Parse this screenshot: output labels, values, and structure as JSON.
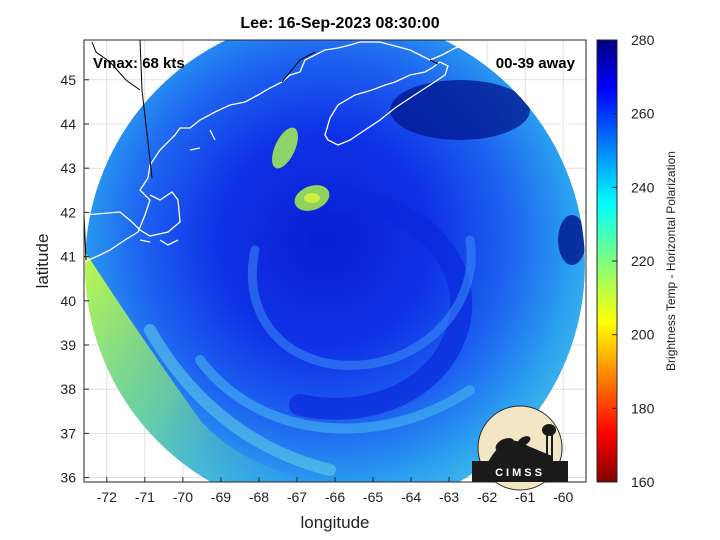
{
  "chart_data": {
    "type": "heatmap",
    "title": "Lee: 16-Sep-2023 08:30:00",
    "xlabel": "longitude",
    "ylabel": "latitude",
    "xlim": [
      -72.6,
      -59.4
    ],
    "ylim": [
      35.9,
      45.9
    ],
    "xticks": [
      -72,
      -71,
      -70,
      -69,
      -68,
      -67,
      -66,
      -65,
      -64,
      -63,
      -62,
      -61,
      -60
    ],
    "yticks": [
      36,
      37,
      38,
      39,
      40,
      41,
      42,
      43,
      44,
      45
    ],
    "grid": true,
    "annotations": {
      "vmax": "Vmax: 68 kts",
      "distance": "00-39 away"
    },
    "colorbar": {
      "label": "Brightness Temp - Horizontal Polarization",
      "range": [
        160,
        280
      ],
      "ticks": [
        280,
        260,
        240,
        220,
        200,
        180,
        160
      ],
      "colormap": "jet"
    },
    "storm_center": [
      -66.5,
      41.5
    ],
    "swath_radius_deg": 5.2
  },
  "logo": {
    "text": "CIMSS"
  }
}
